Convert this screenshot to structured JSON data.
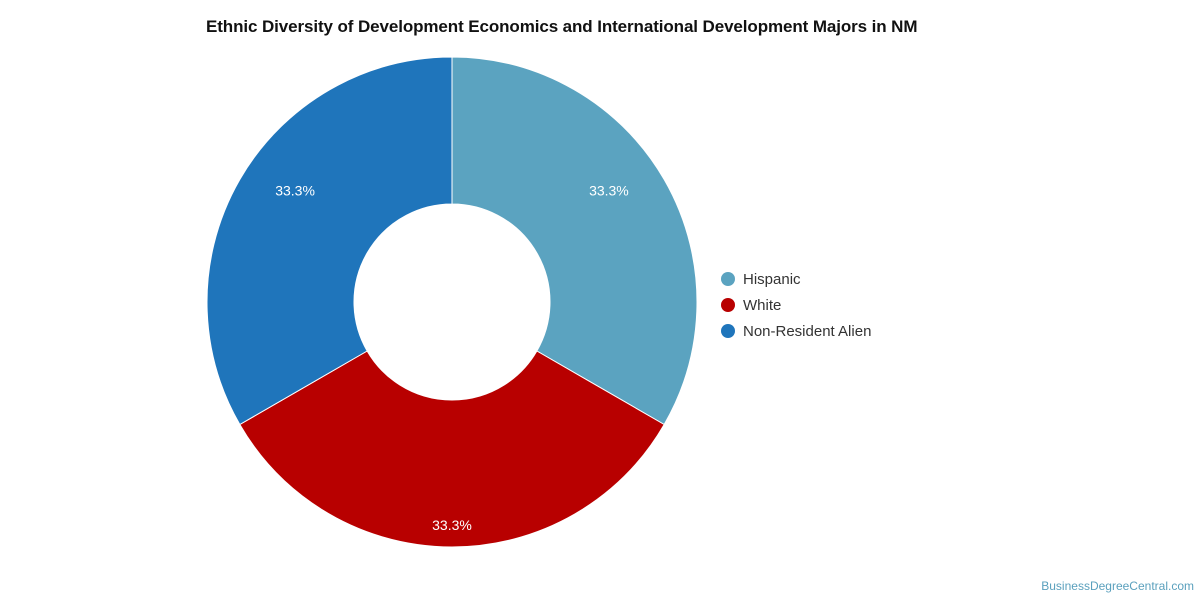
{
  "chart_data": {
    "type": "pie",
    "title": "Ethnic Diversity of Development Economics and International Development Majors in NM",
    "slices": [
      {
        "label": "Hispanic",
        "value": 33.3,
        "display": "33.3%",
        "color": "#5ba3c0"
      },
      {
        "label": "White",
        "value": 33.3,
        "display": "33.3%",
        "color": "#b80000"
      },
      {
        "label": "Non-Resident Alien",
        "value": 33.3,
        "display": "33.3%",
        "color": "#1f75bb"
      }
    ],
    "donut": true,
    "legend_position": "right"
  },
  "credit": "BusinessDegreeCentral.com"
}
